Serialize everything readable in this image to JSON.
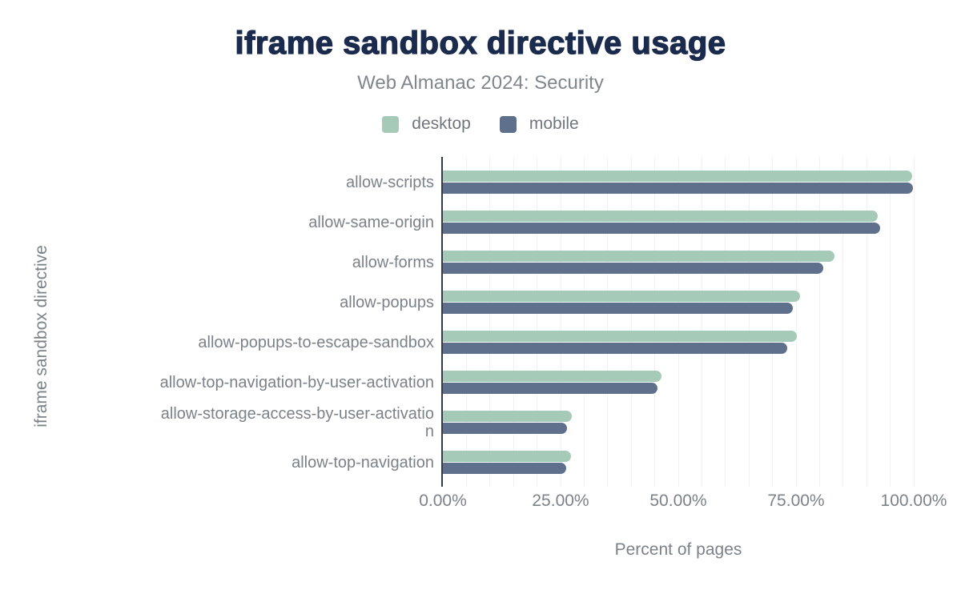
{
  "chart_data": {
    "type": "bar",
    "orientation": "horizontal",
    "title": "iframe sandbox directive usage",
    "subtitle": "Web Almanac 2024: Security",
    "categories": [
      "allow-scripts",
      "allow-same-origin",
      "allow-forms",
      "allow-popups",
      "allow-popups-to-escape-sandbox",
      "allow-top-navigation-by-user-activation",
      "allow-storage-access-by-user-activatio\nn",
      "allow-top-navigation"
    ],
    "series": [
      {
        "name": "desktop",
        "color": "#a5cab8",
        "values": [
          99.6,
          92.4,
          83.2,
          75.9,
          75.2,
          46.5,
          27.4,
          27.2
        ]
      },
      {
        "name": "mobile",
        "color": "#5f708d",
        "values": [
          99.9,
          92.8,
          80.8,
          74.4,
          73.1,
          45.5,
          26.4,
          26.2
        ]
      }
    ],
    "xlabel": "Percent of pages",
    "ylabel": "iframe sandbox directive",
    "x_ticks": [
      "0.00%",
      "25.00%",
      "50.00%",
      "75.00%",
      "100.00%"
    ],
    "xlim": [
      0,
      100
    ],
    "minor_grid_step_percent": 5,
    "legend_position": "top",
    "grid": "on",
    "colors": {
      "title": "#1b2b4d",
      "axis_line": "#343c48",
      "gridline": "#f1f1f4",
      "text_muted": "#7b828a",
      "background": "#ffffff"
    }
  }
}
